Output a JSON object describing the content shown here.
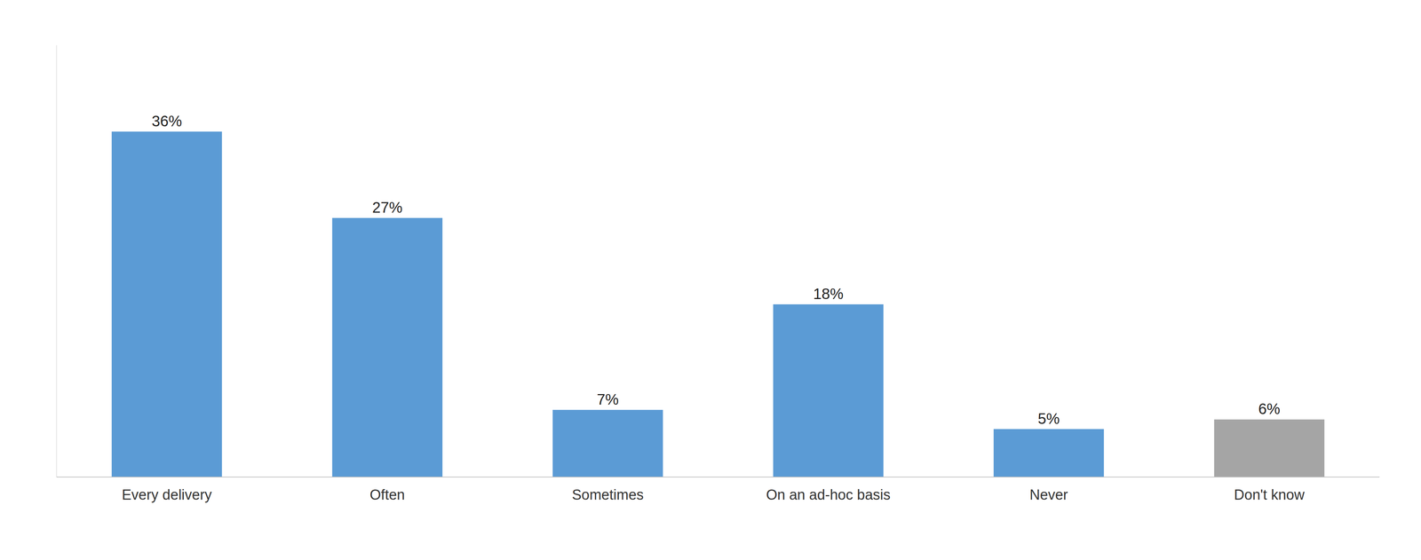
{
  "chart_data": {
    "type": "bar",
    "categories": [
      "Every delivery",
      "Often",
      "Sometimes",
      "On an ad-hoc basis",
      "Never",
      "Don't know"
    ],
    "values": [
      36,
      27,
      7,
      18,
      5,
      6
    ],
    "value_labels": [
      "36%",
      "27%",
      "7%",
      "18%",
      "5%",
      "6%"
    ],
    "colors": [
      "#5B9BD5",
      "#5B9BD5",
      "#5B9BD5",
      "#5B9BD5",
      "#5B9BD5",
      "#A5A5A5"
    ],
    "ylim": [
      0,
      45
    ],
    "data_labels": true,
    "tick_labels": "x"
  }
}
